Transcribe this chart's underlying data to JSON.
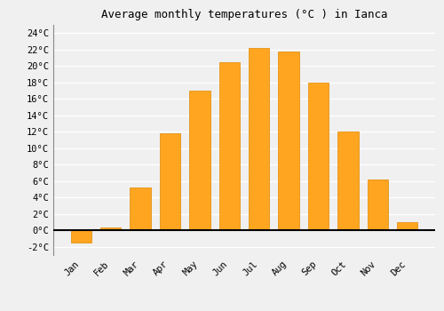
{
  "title": "Average monthly temperatures (°C ) in Ianca",
  "months": [
    "Jan",
    "Feb",
    "Mar",
    "Apr",
    "May",
    "Jun",
    "Jul",
    "Aug",
    "Sep",
    "Oct",
    "Nov",
    "Dec"
  ],
  "values": [
    -1.5,
    0.3,
    5.2,
    11.8,
    17.0,
    20.5,
    22.2,
    21.8,
    18.0,
    12.0,
    6.2,
    1.0
  ],
  "bar_color": "#FFA520",
  "bar_edge_color": "#E08800",
  "ylim": [
    -3,
    25
  ],
  "yticks": [
    -2,
    0,
    2,
    4,
    6,
    8,
    10,
    12,
    14,
    16,
    18,
    20,
    22,
    24
  ],
  "ytick_labels": [
    "-2°C",
    "0°C",
    "2°C",
    "4°C",
    "6°C",
    "8°C",
    "10°C",
    "12°C",
    "14°C",
    "16°C",
    "18°C",
    "20°C",
    "22°C",
    "24°C"
  ],
  "background_color": "#f0f0f0",
  "plot_bg_color": "#f0f0f0",
  "grid_color": "#ffffff",
  "title_fontsize": 9,
  "tick_fontsize": 7.5,
  "font_family": "monospace",
  "bar_width": 0.7
}
